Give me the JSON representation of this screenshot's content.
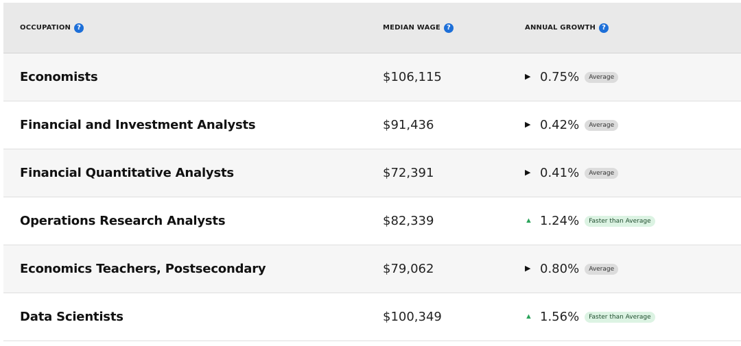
{
  "header": {
    "occupation": "OCCUPATION",
    "median_wage": "MEDIAN WAGE",
    "annual_growth": "ANNUAL GROWTH",
    "help_glyph": "?"
  },
  "rows": [
    {
      "occupation": "Economists",
      "wage": "$106,115",
      "trend": "flat",
      "trend_glyph": "▶",
      "growth": "0.75%",
      "badge": "Average"
    },
    {
      "occupation": "Financial and Investment Analysts",
      "wage": "$91,436",
      "trend": "flat",
      "trend_glyph": "▶",
      "growth": "0.42%",
      "badge": "Average"
    },
    {
      "occupation": "Financial Quantitative Analysts",
      "wage": "$72,391",
      "trend": "flat",
      "trend_glyph": "▶",
      "growth": "0.41%",
      "badge": "Average"
    },
    {
      "occupation": "Operations Research Analysts",
      "wage": "$82,339",
      "trend": "up",
      "trend_glyph": "▲",
      "growth": "1.24%",
      "badge": "Faster than Average"
    },
    {
      "occupation": "Economics Teachers, Postsecondary",
      "wage": "$79,062",
      "trend": "flat",
      "trend_glyph": "▶",
      "growth": "0.80%",
      "badge": "Average"
    },
    {
      "occupation": "Data Scientists",
      "wage": "$100,349",
      "trend": "up",
      "trend_glyph": "▲",
      "growth": "1.56%",
      "badge": "Faster than Average"
    }
  ],
  "colors": {
    "help_icon": "#1d6fd8",
    "trend_up": "#2aa35a",
    "badge_average_bg": "#dcdcdc",
    "badge_faster_bg": "#dcf3e3"
  },
  "icons": {
    "help": "question-circle-icon",
    "flat": "triangle-right-icon",
    "up": "triangle-up-icon"
  }
}
